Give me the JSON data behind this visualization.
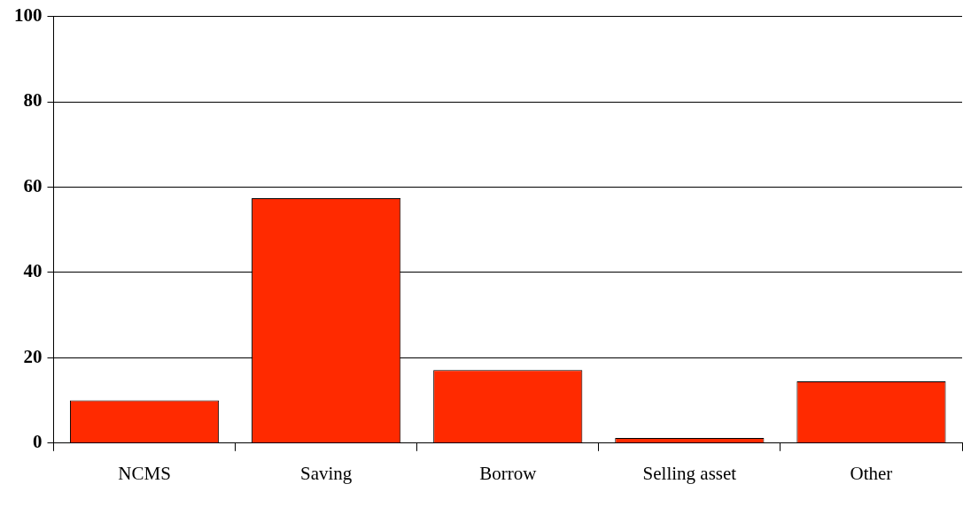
{
  "chart_data": {
    "type": "bar",
    "categories": [
      "NCMS",
      "Saving",
      "Borrow",
      "Selling asset",
      "Other"
    ],
    "values": [
      10.0,
      57.4,
      17.1,
      1.2,
      14.5
    ],
    "color": "#ff2a00",
    "ylim": [
      0,
      100
    ],
    "yticks": [
      0,
      20,
      40,
      60,
      80,
      100
    ],
    "grid": "y",
    "legend": false
  }
}
